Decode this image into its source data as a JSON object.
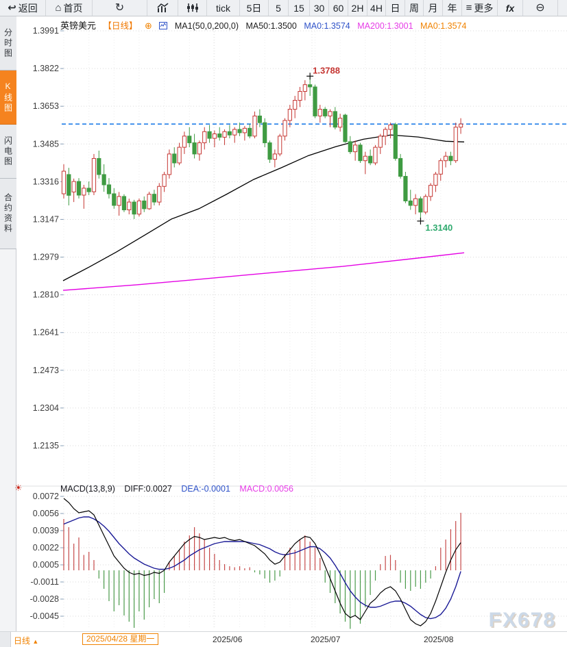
{
  "toolbar": {
    "items": [
      {
        "label": "返回",
        "icon": "back-arrow"
      },
      {
        "label": "首页",
        "icon": "home"
      },
      {
        "label": "",
        "icon": "refresh"
      },
      {
        "label": "",
        "icon": "line-chart"
      },
      {
        "label": "",
        "icon": "candlestick"
      },
      {
        "label": "tick",
        "icon": ""
      },
      {
        "label": "5日",
        "icon": ""
      },
      {
        "label": "5",
        "icon": ""
      },
      {
        "label": "15",
        "icon": ""
      },
      {
        "label": "30",
        "icon": ""
      },
      {
        "label": "60",
        "icon": ""
      },
      {
        "label": "2H",
        "icon": ""
      },
      {
        "label": "4H",
        "icon": ""
      },
      {
        "label": "日",
        "icon": ""
      },
      {
        "label": "周",
        "icon": ""
      },
      {
        "label": "月",
        "icon": ""
      },
      {
        "label": "年",
        "icon": ""
      },
      {
        "label": "更多",
        "icon": "menu"
      },
      {
        "label": "fx",
        "icon": ""
      },
      {
        "label": "",
        "icon": "zoom-out"
      }
    ]
  },
  "sidebar": {
    "items": [
      {
        "label": "分时图",
        "active": false
      },
      {
        "label": "K线图",
        "active": true
      },
      {
        "label": "闪电图",
        "active": false
      },
      {
        "label": "合约资料",
        "active": false
      }
    ]
  },
  "chart_header": {
    "symbol": "英镑美元",
    "period_tag": "【日线】",
    "add_icon": "⊕",
    "ma_settings": "MA1(50,0,200,0)",
    "ma50": "MA50:1.3500",
    "ma0_blue": "MA0:1.3574",
    "ma200": "MA200:1.3001",
    "ma0_orange": "MA0:1.3574"
  },
  "macd_header": {
    "title": "MACD(13,8,9)",
    "diff": "DIFF:0.0027",
    "dea": "DEA:-0.0001",
    "macd": "MACD:0.0056"
  },
  "annotations": {
    "high": "1.3788",
    "low": "1.3140"
  },
  "footer": {
    "period": "日线",
    "period_arrow": "▲",
    "date_box": "2025/04/28 星期一",
    "months": [
      "2025/06",
      "2025/07",
      "2025/08"
    ]
  },
  "watermark": "FX678",
  "colors": {
    "up": "#c53531",
    "down": "#3f9b42",
    "hist_up": "#c54848",
    "hist_down": "#4a9a4a",
    "ma50": "#000000",
    "ma200": "#e400e4",
    "diff": "#000000",
    "dea": "#1a1a96",
    "last_price_line": "#1f7de8",
    "grid": "#d9d9d9",
    "grid_faint": "#ececec",
    "axis_text": "#3c3c3c",
    "annotation_high": "#c53531",
    "annotation_low": "#2faa6e",
    "accent_orange": "#f08200"
  },
  "chart_data": {
    "type": "candlestick-with-macd",
    "symbol": "GBP/USD 英镑美元 daily",
    "price_axis": {
      "ticks": [
        "1.3991",
        "1.3822",
        "1.3653",
        "1.3485",
        "1.3316",
        "1.3147",
        "1.2979",
        "1.2810",
        "1.2641",
        "1.2473",
        "1.2304",
        "1.2135"
      ],
      "top": 1.3991,
      "bottom": 1.2135
    },
    "macd_axis": {
      "ticks": [
        "0.0072",
        "0.0056",
        "0.0039",
        "0.0022",
        "0.0005",
        "-0.0011",
        "-0.0028",
        "-0.0045"
      ],
      "top": 0.0072,
      "step": 0.001667
    },
    "last_price": 1.3574,
    "high_point": {
      "index": 49,
      "price": 1.3788
    },
    "low_point": {
      "index": 71,
      "price": 1.314
    },
    "x_axis": {
      "start_label": "2025/04/28 星期一",
      "month_labels": [
        "2025/06",
        "2025/07",
        "2025/08"
      ],
      "month_x": [
        312,
        455,
        620
      ]
    },
    "candles": {
      "o": [
        1.3262,
        1.3348,
        1.327,
        1.3317,
        1.3256,
        1.3287,
        1.3271,
        1.342,
        1.3348,
        1.3302,
        1.3262,
        1.321,
        1.325,
        1.319,
        1.3225,
        1.3171,
        1.323,
        1.3195,
        1.326,
        1.3225,
        1.3295,
        1.3348,
        1.344,
        1.34,
        1.347,
        1.352,
        1.349,
        1.344,
        1.349,
        1.354,
        1.351,
        1.353,
        1.3515,
        1.354,
        1.3525,
        1.355,
        1.3535,
        1.3555,
        1.352,
        1.361,
        1.358,
        1.349,
        1.3416,
        1.344,
        1.352,
        1.359,
        1.364,
        1.368,
        1.372,
        1.375,
        1.374,
        1.361,
        1.364,
        1.361,
        1.363,
        1.356,
        1.3614,
        1.3495,
        1.345,
        1.348,
        1.341,
        1.343,
        1.34,
        1.347,
        1.352,
        1.355,
        1.3572,
        1.342,
        1.334,
        1.323,
        1.321,
        1.324,
        1.318,
        1.325,
        1.33,
        1.335,
        1.341,
        1.343,
        1.341,
        1.356
      ],
      "h": [
        1.3394,
        1.3378,
        1.333,
        1.3332,
        1.3302,
        1.3317,
        1.344,
        1.3455,
        1.3394,
        1.3332,
        1.3287,
        1.327,
        1.326,
        1.324,
        1.3235,
        1.3241,
        1.325,
        1.3271,
        1.328,
        1.331,
        1.336,
        1.346,
        1.347,
        1.349,
        1.354,
        1.356,
        1.353,
        1.35,
        1.356,
        1.357,
        1.3545,
        1.356,
        1.355,
        1.357,
        1.356,
        1.358,
        1.3565,
        1.3575,
        1.363,
        1.364,
        1.36,
        1.35,
        1.346,
        1.353,
        1.36,
        1.366,
        1.37,
        1.374,
        1.377,
        1.3788,
        1.375,
        1.366,
        1.365,
        1.364,
        1.365,
        1.362,
        1.362,
        1.352,
        1.35,
        1.349,
        1.345,
        1.346,
        1.348,
        1.353,
        1.356,
        1.358,
        1.358,
        1.344,
        1.336,
        1.328,
        1.326,
        1.325,
        1.326,
        1.331,
        1.336,
        1.342,
        1.345,
        1.345,
        1.358,
        1.36
      ],
      "l": [
        1.3241,
        1.321,
        1.3225,
        1.3241,
        1.3195,
        1.3256,
        1.3256,
        1.333,
        1.3271,
        1.3241,
        1.3195,
        1.3164,
        1.318,
        1.317,
        1.3149,
        1.316,
        1.318,
        1.319,
        1.321,
        1.321,
        1.327,
        1.333,
        1.338,
        1.339,
        1.344,
        1.347,
        1.342,
        1.341,
        1.346,
        1.349,
        1.347,
        1.35,
        1.348,
        1.351,
        1.349,
        1.352,
        1.35,
        1.351,
        1.351,
        1.356,
        1.347,
        1.34,
        1.338,
        1.343,
        1.35,
        1.356,
        1.36,
        1.365,
        1.368,
        1.37,
        1.36,
        1.358,
        1.36,
        1.356,
        1.355,
        1.354,
        1.349,
        1.344,
        1.341,
        1.34,
        1.335,
        1.339,
        1.339,
        1.344,
        1.348,
        1.351,
        1.341,
        1.333,
        1.322,
        1.319,
        1.317,
        1.314,
        1.317,
        1.323,
        1.327,
        1.332,
        1.338,
        1.339,
        1.34,
        1.353
      ],
      "c": [
        1.3363,
        1.3255,
        1.3317,
        1.3256,
        1.3287,
        1.3271,
        1.342,
        1.3348,
        1.3302,
        1.3262,
        1.321,
        1.325,
        1.319,
        1.3225,
        1.3171,
        1.323,
        1.3195,
        1.326,
        1.3225,
        1.3295,
        1.3348,
        1.344,
        1.34,
        1.347,
        1.352,
        1.349,
        1.344,
        1.349,
        1.354,
        1.351,
        1.353,
        1.3515,
        1.354,
        1.3525,
        1.355,
        1.3535,
        1.3555,
        1.352,
        1.361,
        1.358,
        1.349,
        1.3416,
        1.344,
        1.352,
        1.359,
        1.364,
        1.368,
        1.372,
        1.375,
        1.374,
        1.361,
        1.364,
        1.361,
        1.363,
        1.356,
        1.36,
        1.3495,
        1.345,
        1.348,
        1.341,
        1.343,
        1.34,
        1.347,
        1.352,
        1.355,
        1.357,
        1.342,
        1.334,
        1.323,
        1.321,
        1.324,
        1.318,
        1.325,
        1.33,
        1.335,
        1.341,
        1.343,
        1.341,
        1.356,
        1.3574
      ]
    },
    "ma50_points": [
      [
        92,
        1.2873
      ],
      [
        130,
        1.2934
      ],
      [
        170,
        1.3002
      ],
      [
        210,
        1.3075
      ],
      [
        250,
        1.3149
      ],
      [
        290,
        1.3195
      ],
      [
        330,
        1.3259
      ],
      [
        370,
        1.3326
      ],
      [
        410,
        1.3378
      ],
      [
        450,
        1.3433
      ],
      [
        490,
        1.3473
      ],
      [
        530,
        1.3506
      ],
      [
        570,
        1.3525
      ],
      [
        610,
        1.3516
      ],
      [
        650,
        1.3497
      ],
      [
        677,
        1.3494
      ]
    ],
    "ma200_points": [
      [
        92,
        1.283
      ],
      [
        200,
        1.2855
      ],
      [
        300,
        1.2882
      ],
      [
        400,
        1.291
      ],
      [
        500,
        1.2937
      ],
      [
        600,
        1.2971
      ],
      [
        677,
        1.2998
      ]
    ],
    "macd": {
      "hist": [
        0.005,
        0.0042,
        0.0026,
        0.0032,
        0.0015,
        0.0018,
        0.001,
        -0.0008,
        -0.0018,
        -0.003,
        -0.004,
        -0.0034,
        -0.0044,
        -0.005,
        -0.0056,
        -0.004,
        -0.0048,
        -0.0036,
        -0.0028,
        -0.0032,
        -0.0022,
        0.0008,
        0.0014,
        0.002,
        0.0028,
        0.0034,
        0.0042,
        0.0036,
        0.003,
        0.0022,
        0.0016,
        0.001,
        0.0006,
        0.0004,
        0.0003,
        0.0004,
        0.0002,
        0.0003,
        -0.0002,
        -0.0004,
        -0.0008,
        -0.0012,
        -0.001,
        -0.0006,
        0.0016,
        0.0022,
        0.002,
        0.003,
        0.0034,
        0.0028,
        0.0022,
        0.0012,
        -0.0012,
        -0.0022,
        -0.0032,
        -0.0042,
        -0.005,
        -0.0057,
        -0.0044,
        -0.0052,
        -0.0036,
        -0.0024,
        -0.001,
        0.0006,
        0.0014,
        0.0015,
        0.001,
        -0.0012,
        -0.0018,
        -0.002,
        -0.0016,
        -0.0018,
        -0.0012,
        -0.0008,
        0.0004,
        0.0022,
        0.003,
        0.004,
        0.0048,
        0.0056
      ],
      "diff": [
        0.007,
        0.0066,
        0.006,
        0.0056,
        0.0057,
        0.0058,
        0.0054,
        0.0044,
        0.0034,
        0.0024,
        0.0014,
        0.0008,
        0.0002,
        -0.0002,
        -0.0004,
        -0.0003,
        -0.0005,
        -0.0004,
        -0.0002,
        -0.0003,
        0.0,
        0.0008,
        0.0014,
        0.002,
        0.0026,
        0.003,
        0.0033,
        0.0032,
        0.003,
        0.0031,
        0.0032,
        0.0031,
        0.0032,
        0.003,
        0.0029,
        0.003,
        0.0028,
        0.0026,
        0.0024,
        0.002,
        0.0016,
        0.001,
        0.0006,
        0.0008,
        0.0014,
        0.002,
        0.0026,
        0.003,
        0.0033,
        0.0032,
        0.0026,
        0.0016,
        0.0004,
        -0.0008,
        -0.002,
        -0.0032,
        -0.0042,
        -0.0046,
        -0.0044,
        -0.0048,
        -0.004,
        -0.0032,
        -0.0028,
        -0.0022,
        -0.0018,
        -0.0016,
        -0.002,
        -0.0028,
        -0.0038,
        -0.0048,
        -0.0052,
        -0.0054,
        -0.005,
        -0.0042,
        -0.003,
        -0.0016,
        -0.0002,
        0.001,
        0.002,
        0.0027
      ],
      "dea": [
        0.0045,
        0.0047,
        0.0049,
        0.0051,
        0.0052,
        0.0052,
        0.005,
        0.0047,
        0.0043,
        0.0038,
        0.0032,
        0.0026,
        0.0021,
        0.0016,
        0.0012,
        0.0009,
        0.0006,
        0.0004,
        0.0002,
        0.0001,
        0.0001,
        0.0002,
        0.0004,
        0.0007,
        0.001,
        0.0014,
        0.0017,
        0.002,
        0.0022,
        0.0024,
        0.0026,
        0.0027,
        0.0028,
        0.0028,
        0.0028,
        0.0028,
        0.0028,
        0.0027,
        0.0026,
        0.0025,
        0.0023,
        0.0021,
        0.0018,
        0.0016,
        0.0015,
        0.0016,
        0.0017,
        0.0019,
        0.0021,
        0.0023,
        0.0023,
        0.0021,
        0.0017,
        0.0012,
        0.0005,
        -0.0003,
        -0.0012,
        -0.002,
        -0.0026,
        -0.0031,
        -0.0034,
        -0.0036,
        -0.0036,
        -0.0035,
        -0.0033,
        -0.0031,
        -0.003,
        -0.003,
        -0.0032,
        -0.0035,
        -0.0039,
        -0.0043,
        -0.0046,
        -0.0047,
        -0.0046,
        -0.0043,
        -0.0037,
        -0.0028,
        -0.0016,
        -0.0001
      ]
    }
  }
}
